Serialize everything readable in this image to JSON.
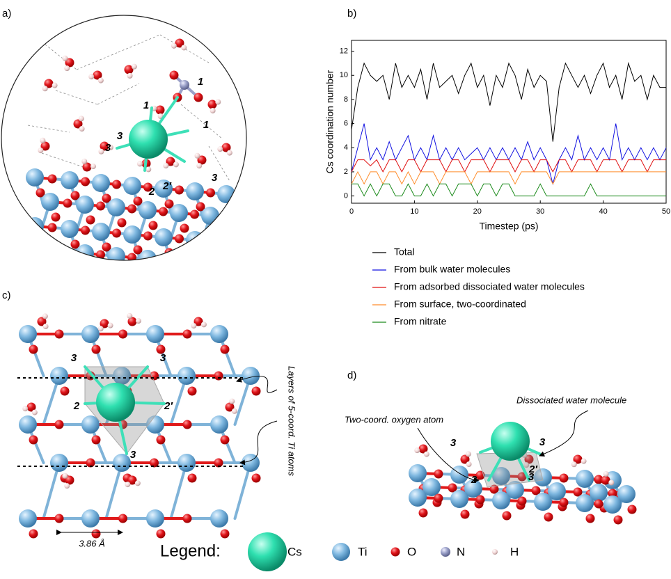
{
  "panel_labels": [
    "a)",
    "b)",
    "c)",
    "d)"
  ],
  "panel_a": {
    "atom_labels": [
      "1",
      "1",
      "1",
      "3",
      "3",
      "2",
      "2′",
      "3"
    ]
  },
  "chart_data": {
    "type": "line",
    "x_label": "Timestep (ps)",
    "y_label": "Cs coordination number",
    "x": [
      0,
      1,
      2,
      3,
      4,
      5,
      6,
      7,
      8,
      9,
      10,
      11,
      12,
      13,
      14,
      15,
      16,
      17,
      18,
      19,
      20,
      21,
      22,
      23,
      24,
      25,
      26,
      27,
      28,
      29,
      30,
      31,
      32,
      33,
      34,
      35,
      36,
      37,
      38,
      39,
      40,
      41,
      42,
      43,
      44,
      45,
      46,
      47,
      48,
      49,
      50
    ],
    "xlim": [
      0,
      50
    ],
    "xticks": [
      0,
      10,
      20,
      30,
      40,
      50
    ],
    "ylim": [
      -0.6,
      12.9
    ],
    "yticks": [
      0,
      2,
      4,
      6,
      8,
      10,
      12
    ],
    "series": [
      {
        "name": "Total",
        "color": "#000000",
        "values": [
          5.5,
          9,
          11,
          10,
          9.5,
          10,
          8,
          11,
          9,
          10,
          9,
          10.5,
          8,
          11,
          9,
          9.5,
          10,
          8.5,
          10,
          11,
          9,
          10,
          7.5,
          10,
          9,
          11,
          10,
          8,
          10.5,
          9,
          10,
          9.5,
          4.5,
          9,
          11,
          10,
          9,
          10,
          8.5,
          10,
          11,
          9,
          10,
          8,
          11,
          9.5,
          10,
          8,
          10,
          9,
          9
        ]
      },
      {
        "name": "From bulk water molecules",
        "color": "#1010e0",
        "values": [
          2,
          4,
          6,
          3,
          4,
          3,
          4.5,
          3,
          4,
          5,
          3,
          4,
          3,
          5,
          3,
          4,
          3,
          4,
          3,
          3.5,
          4,
          3,
          4,
          3,
          4,
          3,
          4,
          3,
          4.5,
          3,
          4,
          3,
          1,
          3,
          4,
          3,
          5,
          3,
          4,
          3,
          4,
          3,
          6,
          3,
          4,
          3,
          4,
          3,
          4,
          3,
          4
        ]
      },
      {
        "name": "From adsorbed dissociated water molecules",
        "color": "#e01010",
        "values": [
          2,
          3,
          3,
          2.5,
          3,
          2,
          3,
          3,
          2,
          3,
          3,
          2,
          3,
          3,
          3,
          2,
          3,
          3,
          2,
          3,
          3,
          3,
          2,
          3,
          3,
          3,
          2,
          3,
          3,
          2,
          3,
          3,
          2,
          3,
          3,
          2,
          3,
          3,
          3,
          2,
          3,
          3,
          3,
          2,
          3,
          3,
          3,
          2,
          3,
          3,
          3
        ]
      },
      {
        "name": "From surface, two-coordinated",
        "color": "#ff8c2a",
        "values": [
          1,
          2,
          1,
          2,
          2,
          1,
          2,
          2,
          1,
          2,
          1,
          2,
          2,
          2,
          1,
          2,
          2,
          2,
          2,
          1,
          2,
          2,
          2,
          2,
          2,
          2,
          1,
          2,
          2,
          2,
          2,
          2,
          1,
          2,
          2,
          2,
          2,
          2,
          2,
          2,
          2,
          2,
          2,
          2,
          2,
          2,
          2,
          2,
          2,
          2,
          2
        ]
      },
      {
        "name": "From nitrate",
        "color": "#1a8a1a",
        "values": [
          1,
          1,
          0,
          1,
          0,
          1,
          1,
          0,
          0,
          1,
          0,
          0,
          1,
          0,
          1,
          1,
          0,
          1,
          1,
          1,
          0,
          1,
          1,
          0,
          1,
          1,
          0,
          0,
          0,
          0,
          1,
          0,
          0,
          0,
          0,
          0,
          0,
          0,
          1,
          0,
          0,
          0,
          0,
          0,
          0,
          0,
          0,
          0,
          0,
          0,
          0
        ]
      }
    ]
  },
  "panel_c": {
    "atom_labels": [
      "3",
      "3",
      "2",
      "2′",
      "3"
    ],
    "annotation": "Layers of 5-coord. Ti atoms",
    "distance": "3.86 Å"
  },
  "panel_d": {
    "atom_labels": [
      "3",
      "3",
      "2′",
      "3",
      "2"
    ],
    "annotations": [
      "Dissociated water molecule",
      "Two-coord. oxygen atom"
    ]
  },
  "legend": {
    "title": "Legend:",
    "items": [
      "Cs",
      "Ti",
      "O",
      "N",
      "H"
    ]
  }
}
